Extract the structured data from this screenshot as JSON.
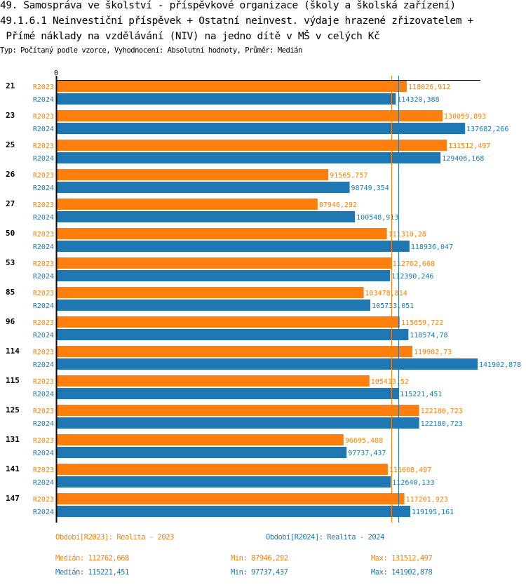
{
  "header": {
    "title_line1": "49. Samospráva ve školství - příspěvkové organizace (školy a školská zařízení)",
    "title_line2": "49.1.6.1 Neinvestiční příspěvek + Ostatní neinvest. výdaje hrazené zřizovatelem +",
    "title_line3": " Přímé náklady na vzdělávání (NIV) na jedno dítě v MŠ v celých Kč",
    "subtitle": "Typ: Počítaný podle vzorce, Vyhodnocení: Absolutní hodnoty, Průměr: Medián"
  },
  "colors": {
    "R2023": "#ff7f0e",
    "R2024": "#1f77b4"
  },
  "chart_data": {
    "type": "bar",
    "orientation": "horizontal",
    "title": "49.1.6.1 Neinvestiční příspěvek + Ostatní neinvest. výdaje hrazené zřizovatelem + Přímé náklady na vzdělávání (NIV) na jedno dítě v MŠ v celých Kč",
    "xlabel": "",
    "ylabel": "",
    "x_tick_labels": [
      "0"
    ],
    "xlim": [
      0,
      141902878
    ],
    "categories": [
      "21",
      "23",
      "25",
      "26",
      "27",
      "50",
      "53",
      "85",
      "96",
      "114",
      "115",
      "125",
      "131",
      "141",
      "147"
    ],
    "series": [
      {
        "name": "R2023",
        "label": "R2023",
        "values": [
          118026912,
          130059893,
          131512497,
          91565757,
          87946292,
          111310280,
          112762668,
          103478814,
          115659722,
          119902730,
          105413520,
          122180723,
          96695488,
          111608497,
          117201923
        ],
        "value_labels": [
          "118026,912",
          "130059,893",
          "131512,497",
          "91565,757",
          "87946,292",
          "111310,28",
          "112762,668",
          "103478,814",
          "115659,722",
          "119902,73",
          "105413,52",
          "122180,723",
          "96695,488",
          "111608,497",
          "117201,923"
        ]
      },
      {
        "name": "R2024",
        "label": "R2024",
        "values": [
          114320388,
          137682266,
          129406168,
          98749354,
          100548913,
          118936047,
          112390246,
          105733051,
          118574780,
          141902878,
          115221451,
          122180723,
          97737437,
          112640133,
          119195161
        ],
        "value_labels": [
          "114320,388",
          "137682,266",
          "129406,168",
          "98749,354",
          "100548,913",
          "118936,047",
          "112390,246",
          "105733,051",
          "118574,78",
          "141902,878",
          "115221,451",
          "122180,723",
          "97737,437",
          "112640,133",
          "119195,161"
        ]
      }
    ],
    "reference_lines": [
      {
        "series": "R2023",
        "type": "median",
        "value": 112762668
      },
      {
        "series": "R2024",
        "type": "median",
        "value": 115221451
      }
    ],
    "legend": [
      {
        "series": "R2023",
        "text": "Období[R2023]: Realita - 2023"
      },
      {
        "series": "R2024",
        "text": "Období[R2024]: Realita - 2024"
      }
    ],
    "stats": [
      {
        "series": "R2023",
        "median": "Medián: 112762,668",
        "min": "Min: 87946,292",
        "max": "Max: 131512,497"
      },
      {
        "series": "R2024",
        "median": "Medián: 115221,451",
        "min": "Min: 97737,437",
        "max": "Max: 141902,878"
      }
    ],
    "legend_position": "bottom"
  }
}
